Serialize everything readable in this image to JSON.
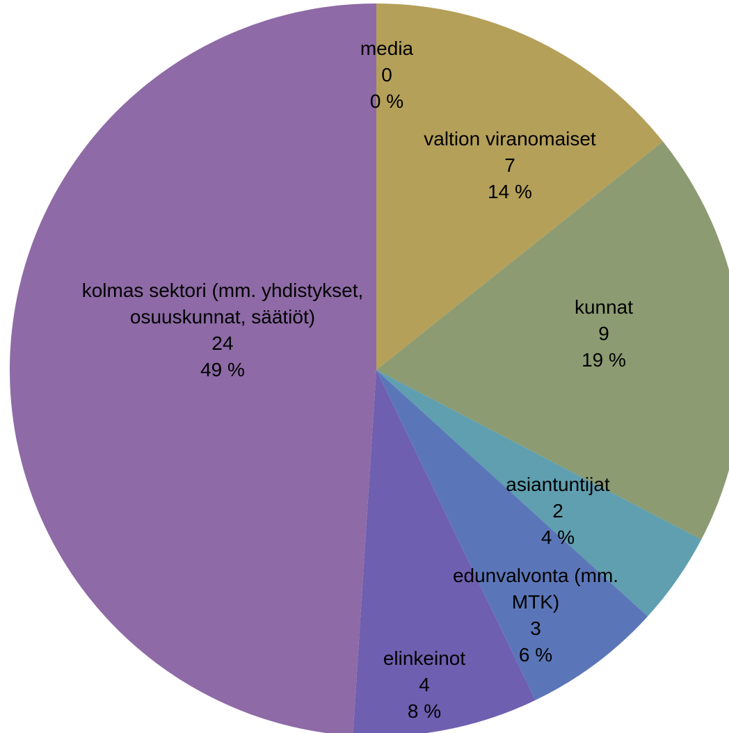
{
  "chart_data": {
    "type": "pie",
    "categories": [
      "media",
      "valtion viranomaiset",
      "kunnat",
      "asiantuntijat",
      "edunvalvonta (mm. MTK)",
      "elinkeinot",
      "kolmas sektori (mm. yhdistykset, osuuskunnat, säätiöt)"
    ],
    "values": [
      0,
      7,
      9,
      2,
      3,
      4,
      24
    ],
    "percent_labels": [
      "0 %",
      "14 %",
      "19 %",
      "4 %",
      "6 %",
      "8 %",
      "49 %"
    ],
    "colors": [
      "#4f81bd",
      "#b5a05a",
      "#8c9b72",
      "#5f9fb0",
      "#5b76b8",
      "#6f5fb0",
      "#8e6aa6"
    ]
  }
}
